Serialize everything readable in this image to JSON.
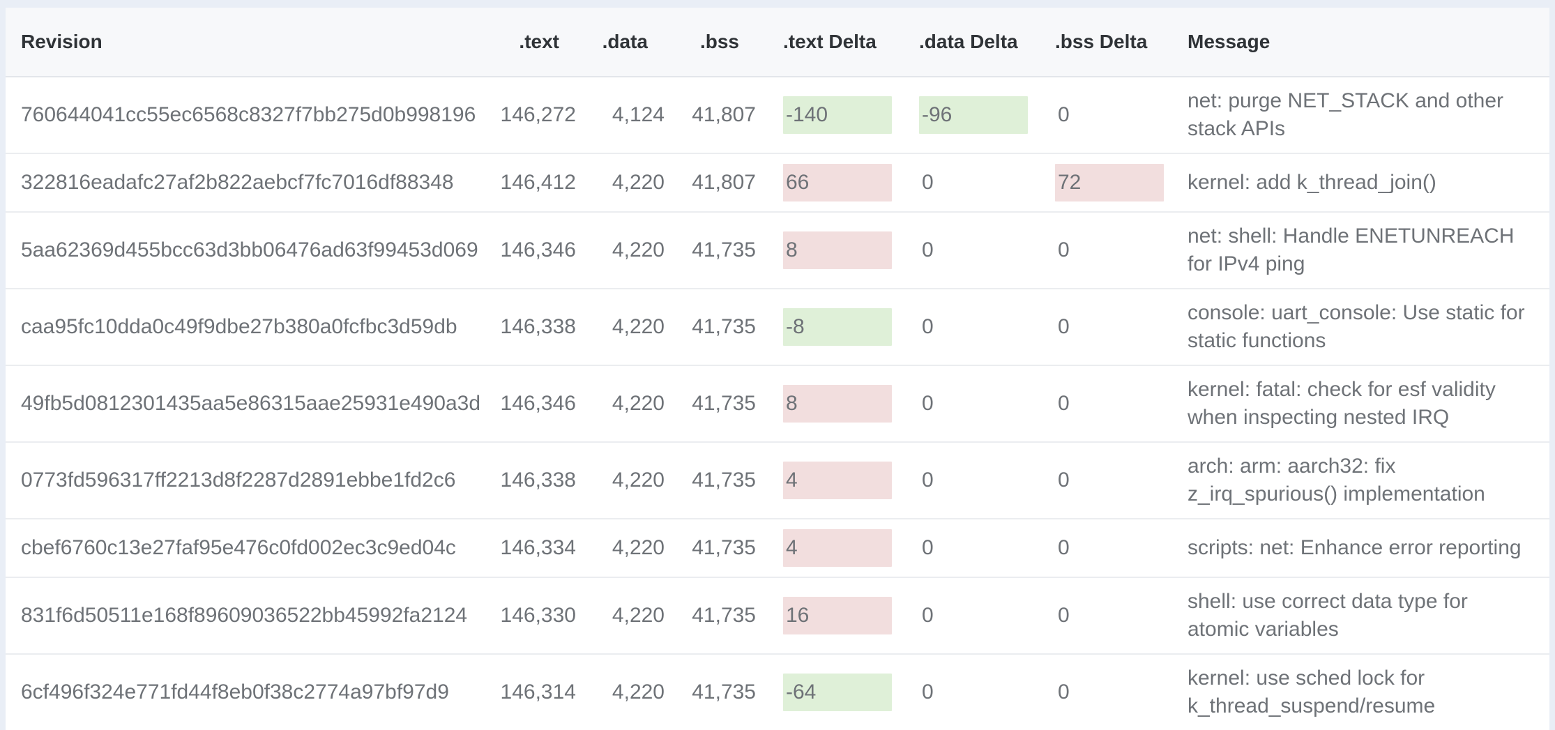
{
  "table": {
    "columns": [
      {
        "key": "revision",
        "label": "Revision"
      },
      {
        "key": "text",
        "label": ".text"
      },
      {
        "key": "data",
        "label": ".data"
      },
      {
        "key": "bss",
        "label": ".bss"
      },
      {
        "key": "text_delta",
        "label": ".text Delta"
      },
      {
        "key": "data_delta",
        "label": ".data Delta"
      },
      {
        "key": "bss_delta",
        "label": ".bss Delta"
      },
      {
        "key": "message",
        "label": "Message"
      }
    ],
    "rows": [
      {
        "revision": "760644041cc55ec6568c8327f7bb275d0b998196",
        "text": "146,272",
        "data": "4,124",
        "bss": "41,807",
        "text_delta": "-140",
        "data_delta": "-96",
        "bss_delta": "0",
        "message": "net: purge NET_STACK and other stack APIs"
      },
      {
        "revision": "322816eadafc27af2b822aebcf7fc7016df88348",
        "text": "146,412",
        "data": "4,220",
        "bss": "41,807",
        "text_delta": "66",
        "data_delta": "0",
        "bss_delta": "72",
        "message": "kernel: add k_thread_join()"
      },
      {
        "revision": "5aa62369d455bcc63d3bb06476ad63f99453d069",
        "text": "146,346",
        "data": "4,220",
        "bss": "41,735",
        "text_delta": "8",
        "data_delta": "0",
        "bss_delta": "0",
        "message": "net: shell: Handle ENETUNREACH for IPv4 ping"
      },
      {
        "revision": "caa95fc10dda0c49f9dbe27b380a0fcfbc3d59db",
        "text": "146,338",
        "data": "4,220",
        "bss": "41,735",
        "text_delta": "-8",
        "data_delta": "0",
        "bss_delta": "0",
        "message": "console: uart_console: Use static for static functions"
      },
      {
        "revision": "49fb5d0812301435aa5e86315aae25931e490a3d",
        "text": "146,346",
        "data": "4,220",
        "bss": "41,735",
        "text_delta": "8",
        "data_delta": "0",
        "bss_delta": "0",
        "message": "kernel: fatal: check for esf validity when inspecting nested IRQ"
      },
      {
        "revision": "0773fd596317ff2213d8f2287d2891ebbe1fd2c6",
        "text": "146,338",
        "data": "4,220",
        "bss": "41,735",
        "text_delta": "4",
        "data_delta": "0",
        "bss_delta": "0",
        "message": "arch: arm: aarch32: fix z_irq_spurious() implementation"
      },
      {
        "revision": "cbef6760c13e27faf95e476c0fd002ec3c9ed04c",
        "text": "146,334",
        "data": "4,220",
        "bss": "41,735",
        "text_delta": "4",
        "data_delta": "0",
        "bss_delta": "0",
        "message": "scripts: net: Enhance error reporting"
      },
      {
        "revision": "831f6d50511e168f89609036522bb45992fa2124",
        "text": "146,330",
        "data": "4,220",
        "bss": "41,735",
        "text_delta": "16",
        "data_delta": "0",
        "bss_delta": "0",
        "message": "shell: use correct data type for atomic variables"
      },
      {
        "revision": "6cf496f324e771fd44f8eb0f38c2774a97bf97d9",
        "text": "146,314",
        "data": "4,220",
        "bss": "41,735",
        "text_delta": "-64",
        "data_delta": "0",
        "bss_delta": "0",
        "message": "kernel: use sched lock for k_thread_suspend/resume"
      }
    ]
  },
  "colors": {
    "delta_increase_bg": "#f2dede",
    "delta_decrease_bg": "#dff0d8",
    "header_bg": "#f7f8fa",
    "page_bg": "#e9eef6",
    "body_text": "#6e7277",
    "header_text": "#2f3337"
  }
}
